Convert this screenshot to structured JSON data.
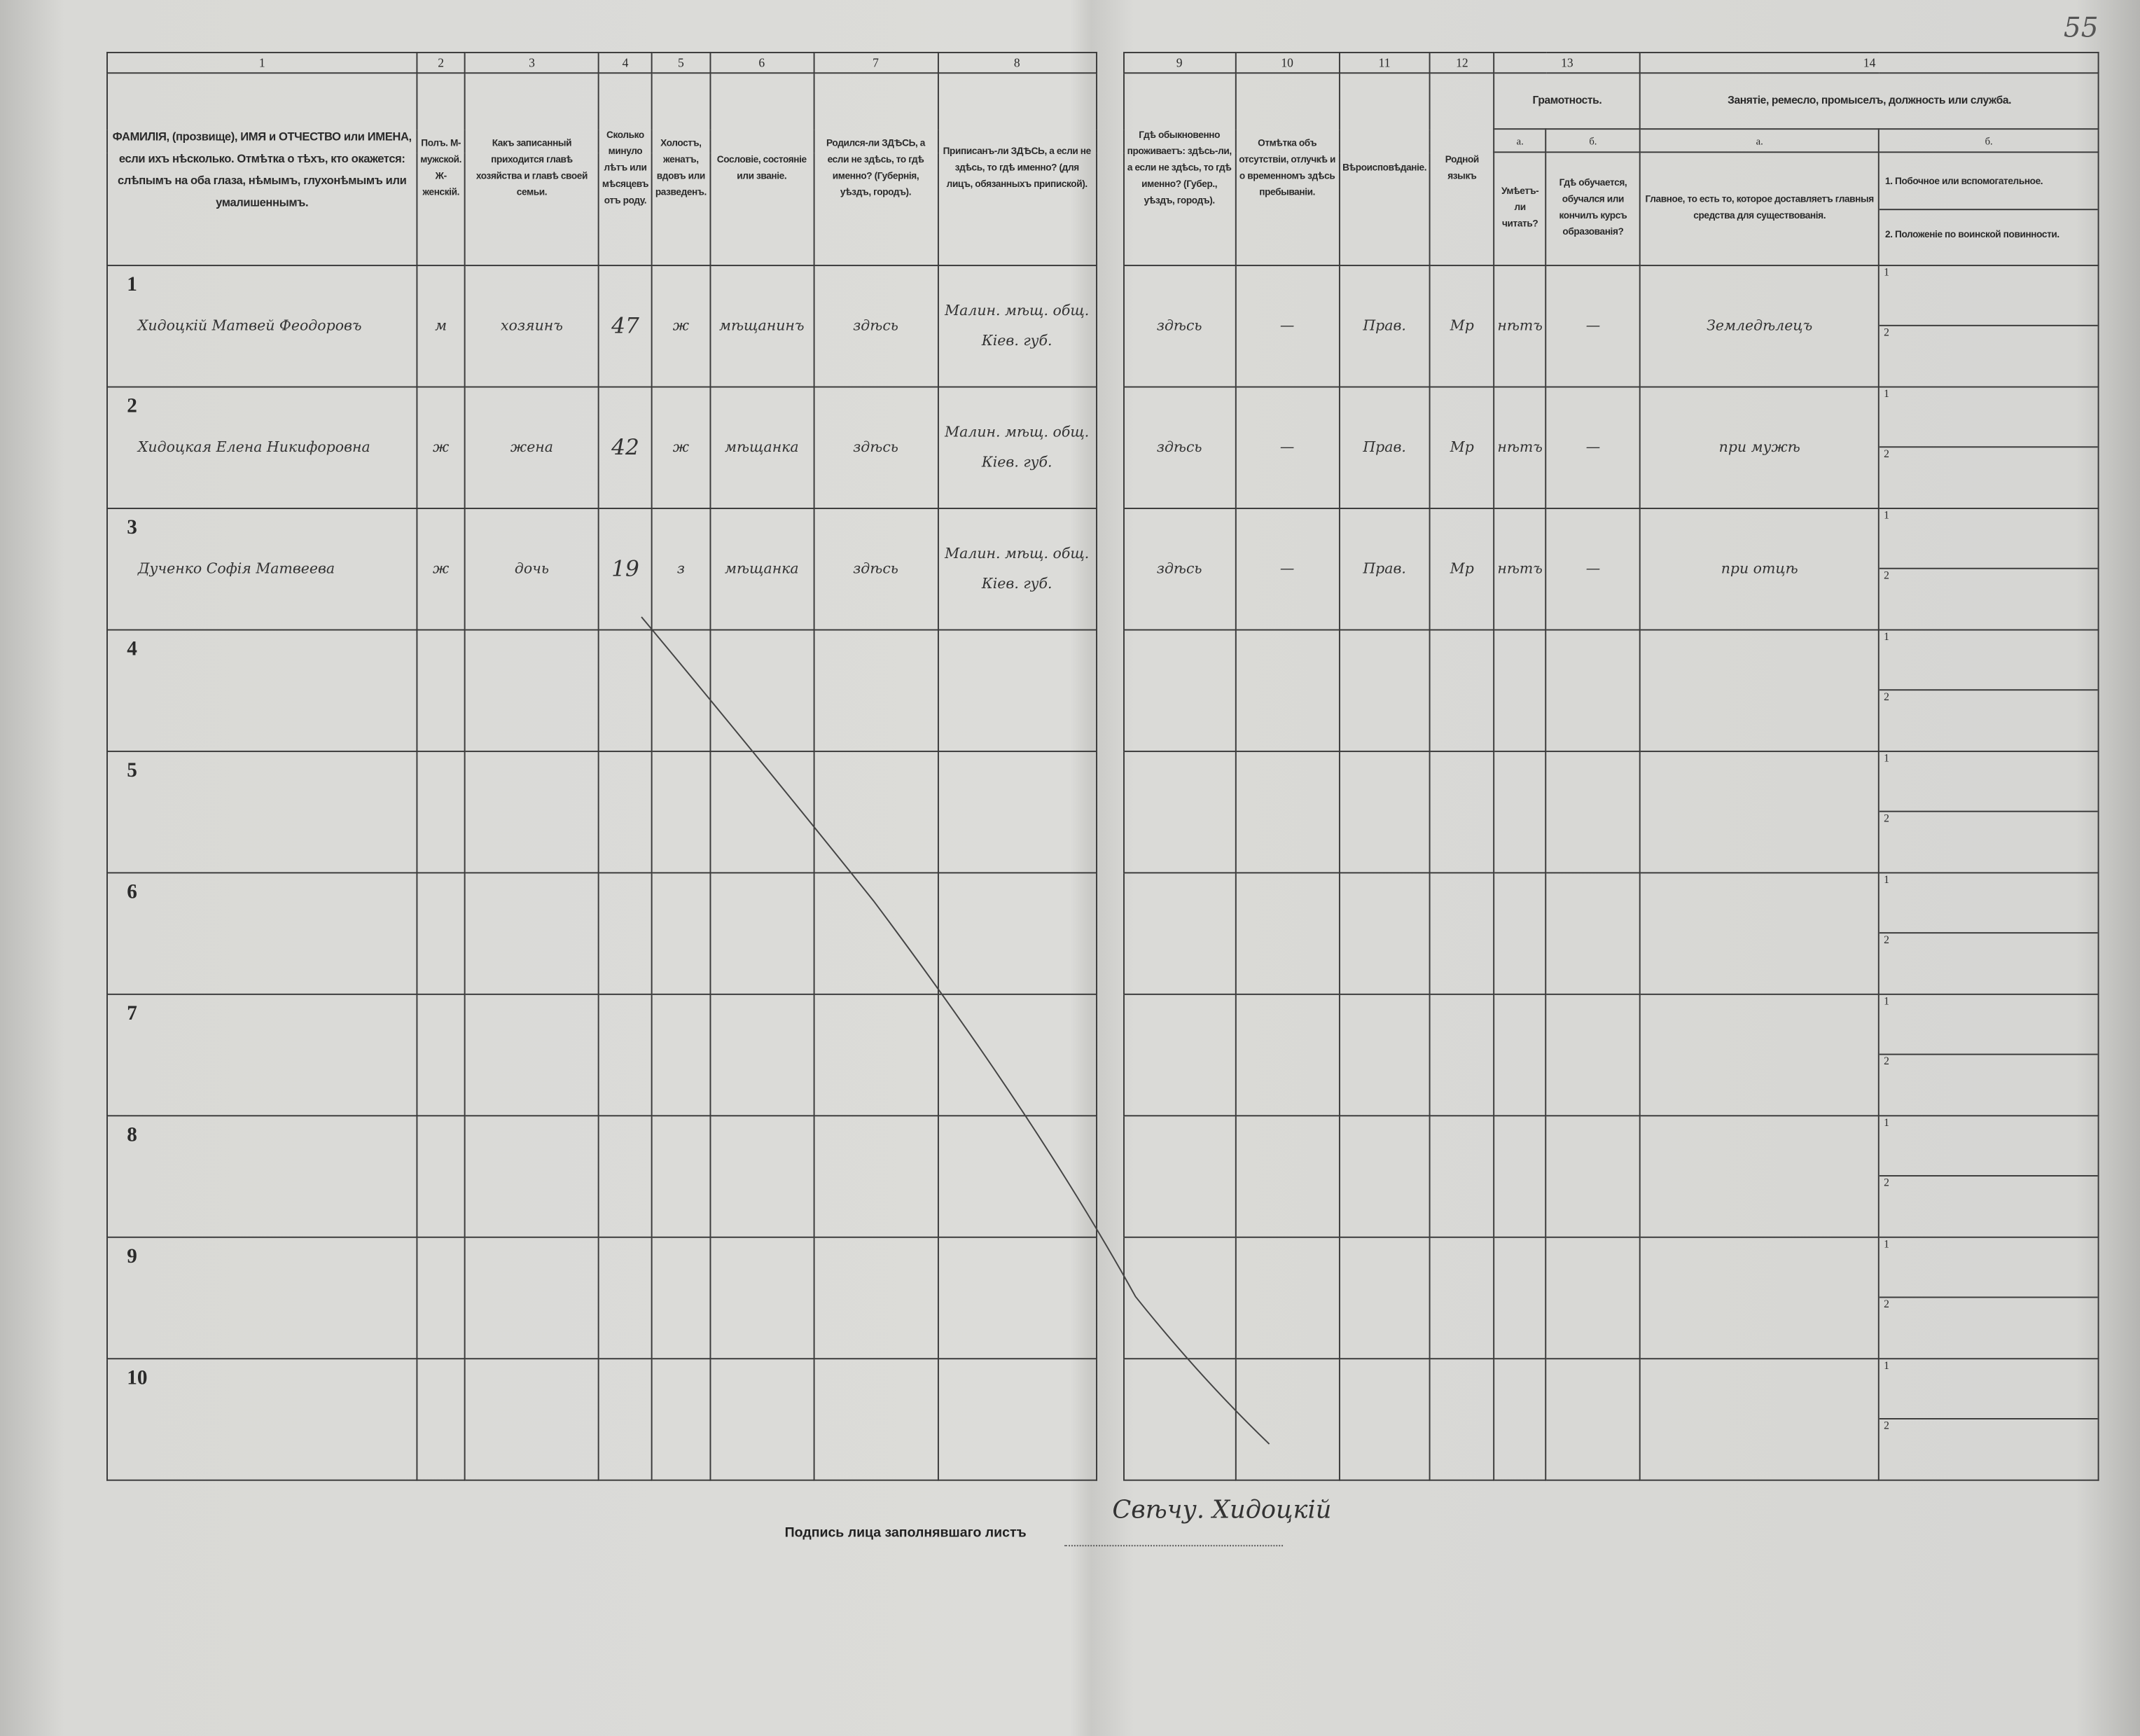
{
  "page_number": "55",
  "columns": {
    "numbers": [
      "1",
      "2",
      "3",
      "4",
      "5",
      "6",
      "7",
      "8",
      "9",
      "10",
      "11",
      "12",
      "13",
      "14"
    ],
    "c1": "ФАМИЛІЯ, (прозвище), ИМЯ и ОТЧЕСТВО или ИМЕНА, если ихъ нѣсколько. Отмѣтка о тѣхъ, кто окажется: слѣпымъ на оба глаза, нѣмымъ, глухонѣмымъ или умалишеннымъ.",
    "c2": "Полъ. М-мужской. Ж-женскій.",
    "c3": "Какъ записанный приходится главѣ хозяйства и главѣ своей семьи.",
    "c4": "Сколько минуло лѣтъ или мѣсяцевъ отъ роду.",
    "c5": "Холостъ, женатъ, вдовъ или разведенъ.",
    "c6": "Сословіе, состояніе или званіе.",
    "c7": "Родился-ли ЗДѢСЬ, а если не здѣсь, то гдѣ именно? (Губернія, уѣздъ, городъ).",
    "c8": "Приписанъ-ли ЗДѢСЬ, а если не здѣсь, то гдѣ именно? (для лицъ, обязанныхъ припиской).",
    "c9": "Гдѣ обыкновенно проживаетъ: здѣсь-ли, а если не здѣсь, то гдѣ именно? (Губер., уѣздъ, городъ).",
    "c10": "Отмѣтка объ отсутствіи, отлучкѣ и о временномъ здѣсь пребываніи.",
    "c11": "Вѣроисповѣданіе.",
    "c12": "Родной языкъ",
    "c13_title": "Грамотность.",
    "c13a_label": "а.",
    "c13a": "Умѣетъ-ли читать?",
    "c13b_label": "б.",
    "c13b": "Гдѣ обучается, обучался или кончилъ курсъ образованія?",
    "c14_title": "Занятіе, ремесло, промыселъ, должность или служба.",
    "c14a_label": "а.",
    "c14a": "Главное, то есть то, которое доставляетъ главныя средства для существованія.",
    "c14b_label": "б.",
    "c14b_1": "1. Побочное или вспомогательное.",
    "c14b_2": "2. Положеніе по воинской повинности."
  },
  "rows": [
    {
      "n": "1",
      "name": "Хидоцкій Матвей Феодоровъ",
      "sex": "м",
      "relation": "хозяинъ",
      "age": "47",
      "marital": "ж",
      "estate": "мѣщанинъ",
      "born": "здѣсь",
      "registered": "Малин. мѣщ. общ. Кіев. губ.",
      "residence": "здѣсь",
      "absence": "—",
      "religion": "Прав.",
      "language": "Мр",
      "literate": "нѣтъ",
      "education": "—",
      "occupation": "Земледѣлецъ",
      "sub1": "1",
      "sub2": "2"
    },
    {
      "n": "2",
      "name": "Хидоцкая Елена Никифоровна",
      "sex": "ж",
      "relation": "жена",
      "age": "42",
      "marital": "ж",
      "estate": "мѣщанка",
      "born": "здѣсь",
      "registered": "Малин. мѣщ. общ. Кіев. губ.",
      "residence": "здѣсь",
      "absence": "—",
      "religion": "Прав.",
      "language": "Мр",
      "literate": "нѣтъ",
      "education": "—",
      "occupation": "при мужѣ",
      "sub1": "1",
      "sub2": "2"
    },
    {
      "n": "3",
      "name": "Дученко Софія Матвеева",
      "sex": "ж",
      "relation": "дочь",
      "age": "19",
      "marital": "з",
      "estate": "мѣщанка",
      "born": "здѣсь",
      "registered": "Малин. мѣщ. общ. Кіев. губ.",
      "residence": "здѣсь",
      "absence": "—",
      "religion": "Прав.",
      "language": "Мр",
      "literate": "нѣтъ",
      "education": "—",
      "occupation": "при отцѣ",
      "sub1": "1",
      "sub2": "2"
    },
    {
      "n": "4",
      "sub1": "1",
      "sub2": "2"
    },
    {
      "n": "5",
      "sub1": "1",
      "sub2": "2"
    },
    {
      "n": "6",
      "sub1": "1",
      "sub2": "2"
    },
    {
      "n": "7",
      "sub1": "1",
      "sub2": "2"
    },
    {
      "n": "8",
      "sub1": "1",
      "sub2": "2"
    },
    {
      "n": "9",
      "sub1": "1",
      "sub2": "2"
    },
    {
      "n": "10",
      "sub1": "1",
      "sub2": "2"
    }
  ],
  "signature": {
    "label": "Подпись лица заполнявшаго листъ",
    "handwritten": "Свѣчу. Хидоцкій"
  }
}
